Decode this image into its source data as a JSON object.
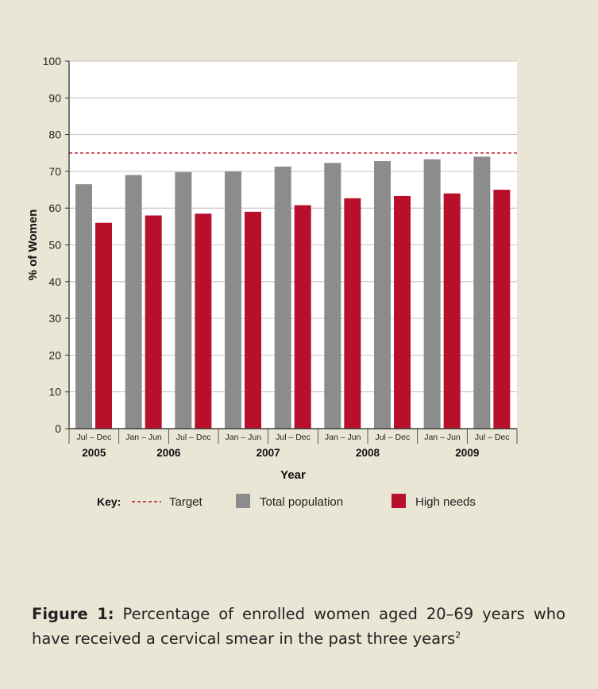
{
  "chart_data": {
    "type": "bar",
    "ylabel": "% of Women",
    "xlabel": "Year",
    "ylim": [
      0,
      100
    ],
    "yticks": [
      0,
      10,
      20,
      30,
      40,
      50,
      60,
      70,
      80,
      90,
      100
    ],
    "grid": true,
    "categories": [
      "Jul – Dec",
      "Jan – Jun",
      "Jul – Dec",
      "Jan – Jun",
      "Jul – Dec",
      "Jan – Jun",
      "Jul – Dec",
      "Jan – Jun",
      "Jul – Dec"
    ],
    "years": [
      {
        "label": "2005",
        "periods": [
          0
        ]
      },
      {
        "label": "2006",
        "periods": [
          1,
          2
        ]
      },
      {
        "label": "2007",
        "periods": [
          3,
          4
        ]
      },
      {
        "label": "2008",
        "periods": [
          5,
          6
        ]
      },
      {
        "label": "2009",
        "periods": [
          7,
          8
        ]
      }
    ],
    "series": [
      {
        "name": "Total population",
        "color": "#8c8c8c",
        "values": [
          66.5,
          69,
          69.8,
          70,
          71.3,
          72.3,
          72.8,
          73.3,
          74
        ]
      },
      {
        "name": "High needs",
        "color": "#b8102b",
        "values": [
          56,
          58,
          58.5,
          59,
          60.8,
          62.7,
          63.3,
          64,
          65
        ]
      }
    ],
    "target": {
      "name": "Target",
      "value": 75,
      "color": "#b8102b",
      "style": "dashed"
    },
    "legend": {
      "placement": "bottom",
      "key_label": "Key:"
    }
  },
  "caption": {
    "label": "Figure 1:",
    "text": " Percentage of enrolled women aged 20–69 years who have received a cervical smear in the past three years",
    "superscript": "2"
  }
}
